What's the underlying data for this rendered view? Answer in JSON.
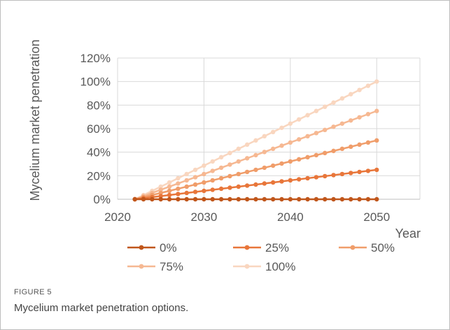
{
  "chart_data": {
    "type": "line",
    "ylabel": "Mycelium market penetration",
    "xlabel": "Year",
    "xlim": [
      2020,
      2055
    ],
    "ylim": [
      0,
      1.2
    ],
    "x_ticks": [
      2020,
      2030,
      2040,
      2050
    ],
    "x_tick_labels": [
      "2020",
      "2030",
      "2040",
      "2050"
    ],
    "y_ticks": [
      0,
      0.2,
      0.4,
      0.6,
      0.8,
      1.0,
      1.2
    ],
    "y_tick_labels": [
      "0%",
      "20%",
      "40%",
      "60%",
      "80%",
      "100%",
      "120%"
    ],
    "grid": true,
    "legend_position": "bottom",
    "x_start": 2022,
    "x_end": 2050,
    "series": [
      {
        "name": "0%",
        "color": "#c0561b",
        "final_value": 0.0
      },
      {
        "name": "25%",
        "color": "#e8763a",
        "final_value": 0.25
      },
      {
        "name": "50%",
        "color": "#f09d6a",
        "final_value": 0.5
      },
      {
        "name": "75%",
        "color": "#f6b892",
        "final_value": 0.75
      },
      {
        "name": "100%",
        "color": "#f9d6bf",
        "final_value": 1.0
      }
    ]
  },
  "caption": {
    "label": "FIGURE 5",
    "text": "Mycelium market penetration options."
  }
}
